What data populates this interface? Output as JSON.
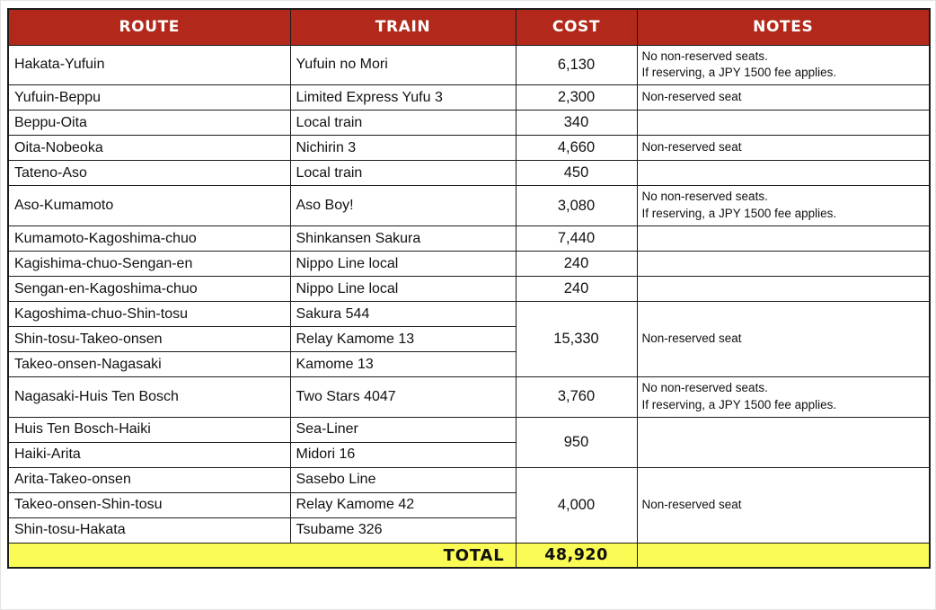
{
  "table": {
    "headers": {
      "route": "ROUTE",
      "train": "TRAIN",
      "cost": "COST",
      "notes": "NOTES"
    },
    "rows": [
      {
        "route": "Hakata-Yufuin",
        "train": "Yufuin no Mori",
        "cost": {
          "text": "6,130",
          "span": 1
        },
        "notes": {
          "lines": [
            "No non-reserved seats.",
            "If reserving, a JPY 1500 fee applies."
          ],
          "span": 1
        }
      },
      {
        "route": "Yufuin-Beppu",
        "train": "Limited Express Yufu 3",
        "cost": {
          "text": "2,300",
          "span": 1
        },
        "notes": {
          "lines": [
            "Non-reserved seat"
          ],
          "span": 1
        }
      },
      {
        "route": "Beppu-Oita",
        "train": "Local train",
        "cost": {
          "text": "340",
          "span": 1
        },
        "notes": {
          "lines": [],
          "span": 1
        }
      },
      {
        "route": "Oita-Nobeoka",
        "train": "Nichirin 3",
        "cost": {
          "text": "4,660",
          "span": 1
        },
        "notes": {
          "lines": [
            "Non-reserved seat"
          ],
          "span": 1
        }
      },
      {
        "route": "Tateno-Aso",
        "train": "Local train",
        "cost": {
          "text": "450",
          "span": 1
        },
        "notes": {
          "lines": [],
          "span": 1
        }
      },
      {
        "route": "Aso-Kumamoto",
        "train": "Aso Boy!",
        "cost": {
          "text": "3,080",
          "span": 1
        },
        "notes": {
          "lines": [
            "No non-reserved seats.",
            "If reserving, a JPY 1500 fee applies."
          ],
          "span": 1
        }
      },
      {
        "route": "Kumamoto-Kagoshima-chuo",
        "train": "Shinkansen Sakura",
        "cost": {
          "text": "7,440",
          "span": 1
        },
        "notes": {
          "lines": [],
          "span": 1
        }
      },
      {
        "route": "Kagishima-chuo-Sengan-en",
        "train": "Nippo Line local",
        "cost": {
          "text": "240",
          "span": 1
        },
        "notes": {
          "lines": [],
          "span": 1
        }
      },
      {
        "route": "Sengan-en-Kagoshima-chuo",
        "train": "Nippo Line local",
        "cost": {
          "text": "240",
          "span": 1
        },
        "notes": {
          "lines": [],
          "span": 1
        }
      },
      {
        "route": "Kagoshima-chuo-Shin-tosu",
        "train": "Sakura 544",
        "cost": {
          "text": "15,330",
          "span": 3
        },
        "notes": {
          "lines": [
            "Non-reserved seat"
          ],
          "span": 3
        }
      },
      {
        "route": "Shin-tosu-Takeo-onsen",
        "train": "Relay Kamome 13"
      },
      {
        "route": "Takeo-onsen-Nagasaki",
        "train": "Kamome 13"
      },
      {
        "route": "Nagasaki-Huis Ten Bosch",
        "train": "Two Stars 4047",
        "cost": {
          "text": "3,760",
          "span": 1
        },
        "notes": {
          "lines": [
            "No non-reserved seats.",
            "If reserving, a JPY 1500 fee applies."
          ],
          "span": 1
        }
      },
      {
        "route": "Huis Ten Bosch-Haiki",
        "train": "Sea-Liner",
        "cost": {
          "text": "950",
          "span": 2
        },
        "notes": {
          "lines": [],
          "span": 2
        }
      },
      {
        "route": "Haiki-Arita",
        "train": "Midori 16"
      },
      {
        "route": "Arita-Takeo-onsen",
        "train": "Sasebo Line",
        "cost": {
          "text": "4,000",
          "span": 3
        },
        "notes": {
          "lines": [
            "Non-reserved seat"
          ],
          "span": 3
        }
      },
      {
        "route": "Takeo-onsen-Shin-tosu",
        "train": "Relay Kamome 42"
      },
      {
        "route": "Shin-tosu-Hakata",
        "train": "Tsubame 326"
      }
    ],
    "total": {
      "label": "TOTAL",
      "value": "48,920"
    }
  },
  "colors": {
    "header_bg": "#B2291B",
    "header_text": "#FFFFFF",
    "total_bg": "#FBFB56",
    "border": "#1C1C1C",
    "body_text": "#111111"
  }
}
